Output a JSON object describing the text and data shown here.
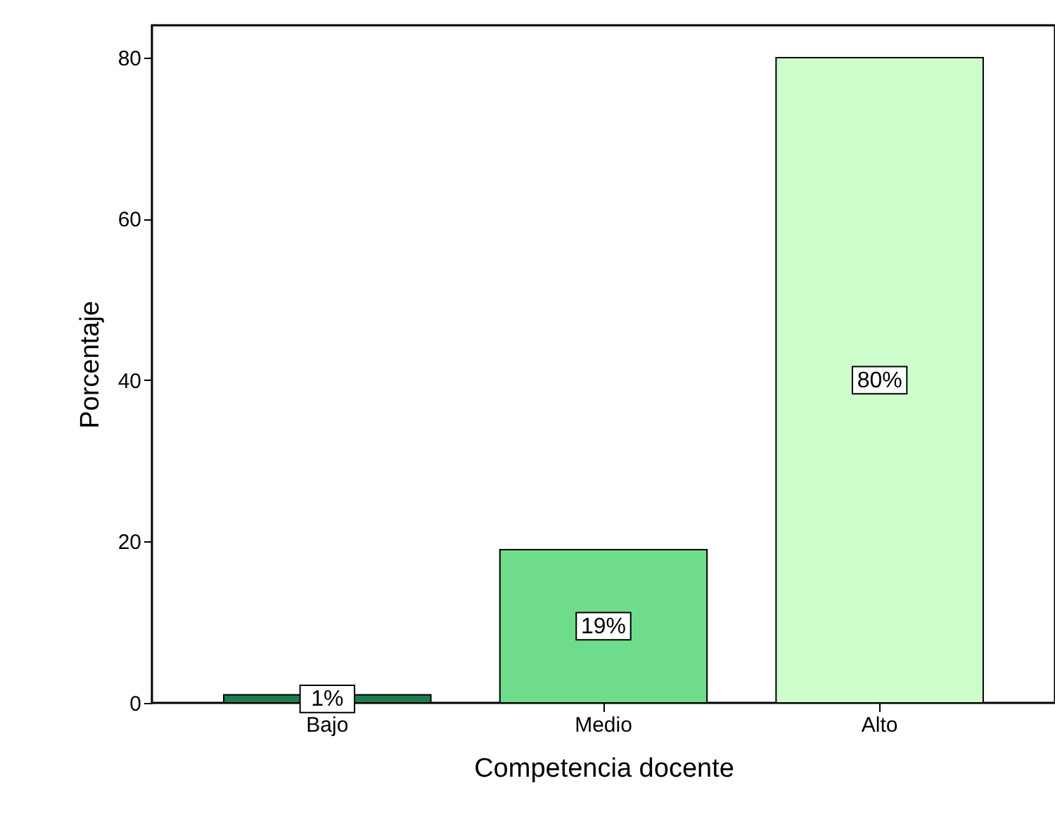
{
  "chart_data": {
    "type": "bar",
    "xlabel": "Competencia docente",
    "ylabel": "Porcentaje",
    "categories": [
      "Bajo",
      "Medio",
      "Alto"
    ],
    "values": [
      1,
      19,
      80
    ],
    "colors": [
      "#1e7d4c",
      "#6fdc8c",
      "#ccffcc"
    ],
    "value_labels": [
      "1%",
      "19%",
      "80%"
    ],
    "ylim": [
      0,
      84
    ],
    "yticks": [
      0,
      20,
      40,
      60,
      80
    ],
    "grid": false
  }
}
